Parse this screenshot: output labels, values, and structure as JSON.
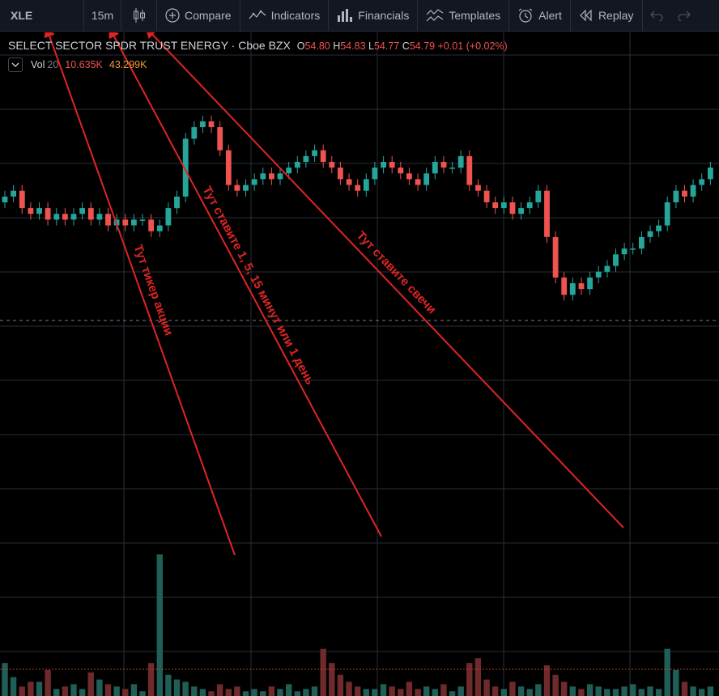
{
  "toolbar": {
    "symbol": "XLE",
    "interval": "15m",
    "compare": "Compare",
    "indicators": "Indicators",
    "financials": "Financials",
    "templates": "Templates",
    "alert": "Alert",
    "replay": "Replay"
  },
  "legend": {
    "title": "SELECT SECTOR SPDR TRUST ENERGY · Cboe BZX",
    "o_label": "O",
    "o_value": "54.80",
    "h_label": "H",
    "h_value": "54.83",
    "l_label": "L",
    "l_value": "54.77",
    "c_label": "C",
    "c_value": "54.79",
    "change": "+0.01 (+0.02%)",
    "vol_name": "Vol",
    "vol_length": "20",
    "vol_value1": "10.635K",
    "vol_value2": "43.299K"
  },
  "colors": {
    "background": "#000000",
    "toolbar": "#131722",
    "up": "#26a69a",
    "down": "#ef5350",
    "grid": "#2a2e39",
    "annotation": "#e02424"
  },
  "annotations": [
    {
      "text": "Тут тикер акции"
    },
    {
      "text": "Тут ставите 1, 5, 15 минут или 1 день"
    },
    {
      "text": "Тут ставите свечи"
    }
  ],
  "chart_data": {
    "type": "candlestick",
    "symbol": "XLE",
    "interval": "15m",
    "price_series": [
      54.72,
      54.73,
      54.7,
      54.69,
      54.7,
      54.68,
      54.69,
      54.68,
      54.69,
      54.7,
      54.68,
      54.69,
      54.67,
      54.68,
      54.67,
      54.68,
      54.68,
      54.66,
      54.67,
      54.7,
      54.72,
      54.82,
      54.84,
      54.85,
      54.84,
      54.8,
      54.74,
      54.73,
      54.74,
      54.75,
      54.76,
      54.75,
      54.76,
      54.77,
      54.78,
      54.79,
      54.8,
      54.78,
      54.77,
      54.75,
      54.74,
      54.73,
      54.75,
      54.77,
      54.78,
      54.77,
      54.76,
      54.75,
      54.74,
      54.76,
      54.78,
      54.77,
      54.77,
      54.79,
      54.74,
      54.73,
      54.71,
      54.7,
      54.71,
      54.69,
      54.7,
      54.71,
      54.73,
      54.65,
      54.58,
      54.55,
      54.57,
      54.56,
      54.58,
      54.59,
      54.6,
      54.62,
      54.63,
      54.63,
      54.65,
      54.66,
      54.67,
      54.71,
      54.73,
      54.72,
      54.74,
      54.75,
      54.77
    ],
    "volume_series": [
      14,
      8,
      4,
      6,
      6,
      11,
      3,
      4,
      5,
      3,
      10,
      7,
      5,
      4,
      3,
      5,
      2,
      14,
      60,
      9,
      7,
      6,
      4,
      3,
      2,
      5,
      3,
      4,
      2,
      3,
      2,
      4,
      3,
      5,
      2,
      3,
      4,
      20,
      14,
      9,
      6,
      4,
      3,
      3,
      5,
      4,
      3,
      6,
      3,
      4,
      3,
      5,
      2,
      4,
      14,
      16,
      7,
      4,
      3,
      6,
      4,
      3,
      5,
      13,
      9,
      6,
      4,
      3,
      5,
      4,
      3,
      3,
      4,
      5,
      3,
      4,
      3,
      20,
      11,
      6,
      4,
      3,
      4
    ],
    "price_grid_lines": 12,
    "last_price_line": true
  }
}
